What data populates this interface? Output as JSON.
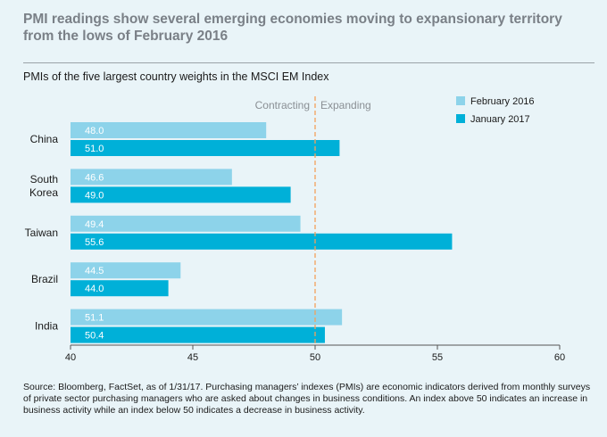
{
  "title": "PMI readings show several emerging economies moving to expansionary territory from the lows of February 2016",
  "subtitle": "PMIs of the five largest country weights in the MSCI EM Index",
  "source": "Source: Bloomberg, FactSet, as of 1/31/17. Purchasing managers’ indexes (PMIs) are economic indicators derived from monthly surveys of private sector purchasing managers who are asked about changes in business conditions. An index above 50 indicates an increase in business activity while an index below 50 indicates a decrease in business activity.",
  "colors": {
    "background": "#e9f4f8",
    "series_feb": "#8dd3ea",
    "series_jan": "#00b0d8",
    "threshold": "#f5a05a"
  },
  "chart_data": {
    "type": "bar",
    "orientation": "horizontal",
    "categories": [
      {
        "label": [
          "China"
        ]
      },
      {
        "label": [
          "South",
          "Korea"
        ]
      },
      {
        "label": [
          "Taiwan"
        ]
      },
      {
        "label": [
          "Brazil"
        ]
      },
      {
        "label": [
          "India"
        ]
      }
    ],
    "series": [
      {
        "name": "February 2016",
        "values": [
          48.0,
          46.6,
          49.4,
          44.5,
          51.1
        ]
      },
      {
        "name": "January 2017",
        "values": [
          51.0,
          49.0,
          55.6,
          44.0,
          50.4
        ]
      }
    ],
    "xlim": [
      40,
      60
    ],
    "xticks": [
      40,
      45,
      50,
      55,
      60
    ],
    "threshold": 50,
    "threshold_labels": {
      "left": "Contracting",
      "right": "Expanding"
    },
    "legend_position": "top-right",
    "title": "PMIs of the five largest country weights in the MSCI EM Index"
  }
}
